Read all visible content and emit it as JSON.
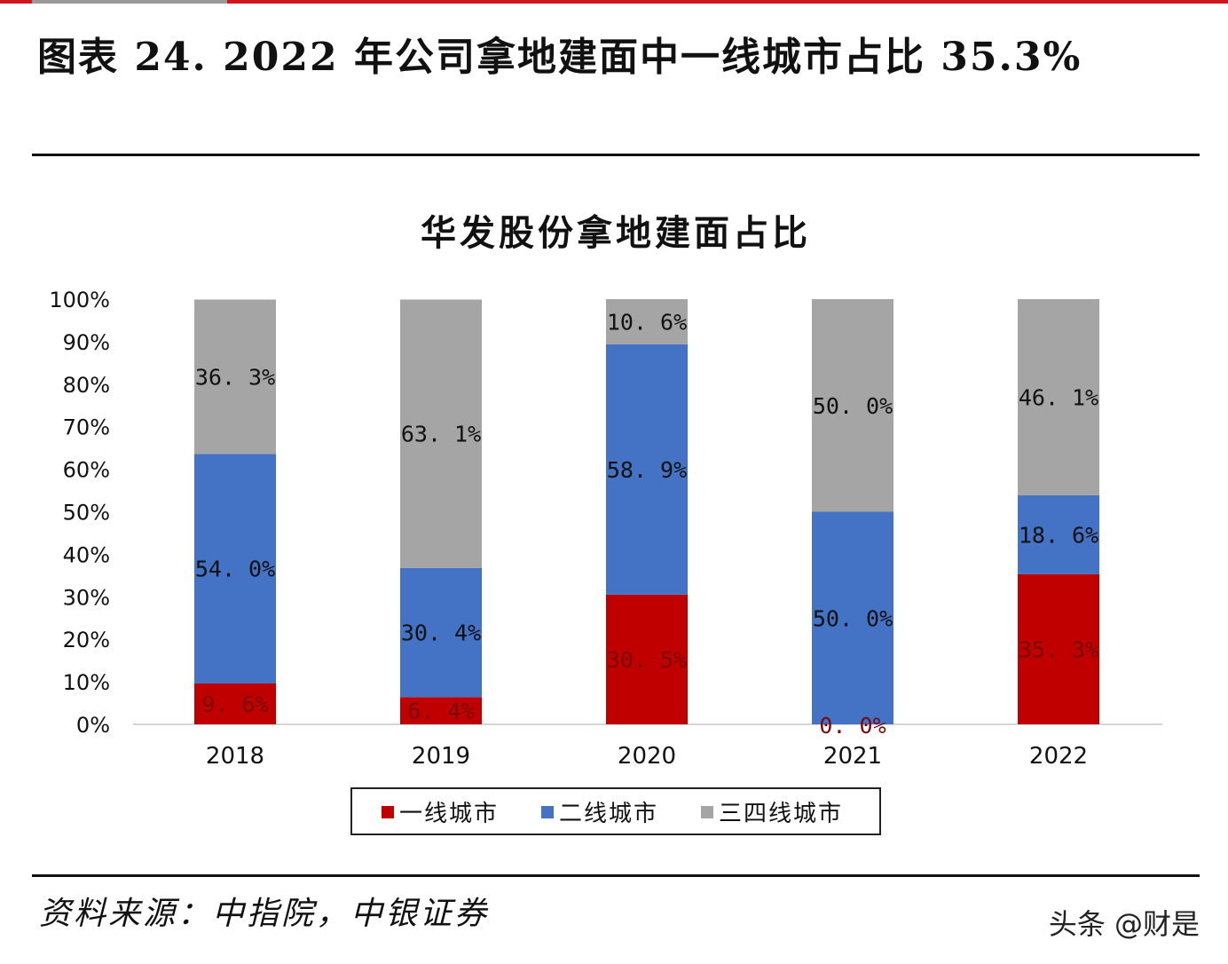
{
  "figure": {
    "title": "图表 24. 2022 年公司拿地建面中一线城市占比 35.3%",
    "source": "资料来源：中指院，中银证券",
    "watermark": "头条 @财是"
  },
  "colors": {
    "tier1": "#c00000",
    "tier2": "#4472c4",
    "tier34": "#a5a5a5",
    "accent": "#d4141c"
  },
  "chart_data": {
    "type": "bar",
    "stacked": true,
    "title": "华发股份拿地建面占比",
    "categories": [
      "2018",
      "2019",
      "2020",
      "2021",
      "2022"
    ],
    "series": [
      {
        "name": "一线城市",
        "values": [
          9.6,
          6.4,
          30.5,
          0.0,
          35.3
        ],
        "labels": [
          "9. 6%",
          "6. 4%",
          "30. 5%",
          "0. 0%",
          "35. 3%"
        ]
      },
      {
        "name": "二线城市",
        "values": [
          54.0,
          30.4,
          58.9,
          50.0,
          18.6
        ],
        "labels": [
          "54. 0%",
          "30. 4%",
          "58. 9%",
          "50. 0%",
          "18. 6%"
        ]
      },
      {
        "name": "三四线城市",
        "values": [
          36.3,
          63.1,
          10.6,
          50.0,
          46.1
        ],
        "labels": [
          "36. 3%",
          "63. 1%",
          "10. 6%",
          "50. 0%",
          "46. 1%"
        ]
      }
    ],
    "ylim": [
      0,
      100
    ],
    "yticks": [
      "0%",
      "10%",
      "20%",
      "30%",
      "40%",
      "50%",
      "60%",
      "70%",
      "80%",
      "90%",
      "100%"
    ],
    "legend": "bottom",
    "grid": false,
    "xlabel": "",
    "ylabel": ""
  }
}
